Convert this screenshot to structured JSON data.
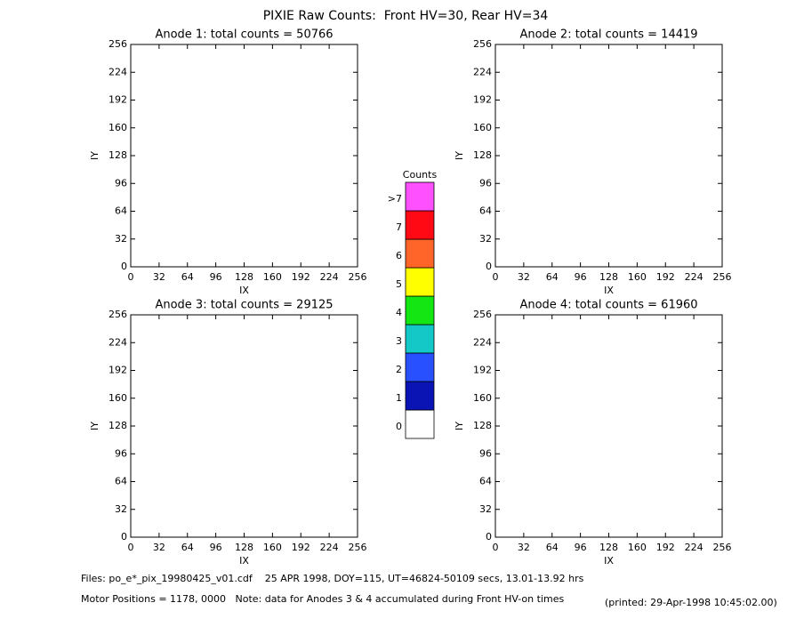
{
  "title": "PIXIE Raw Counts:  Front HV=30, Rear HV=34",
  "chart_data": [
    {
      "type": "heatmap",
      "title": "Anode 1: total counts = 50766",
      "xlabel": "IX",
      "ylabel": "IY",
      "xlim": [
        0,
        256
      ],
      "ylim": [
        0,
        256
      ],
      "xticks": [
        0,
        32,
        64,
        96,
        128,
        160,
        192,
        224,
        256
      ],
      "yticks": [
        0,
        32,
        64,
        96,
        128,
        160,
        192,
        224,
        256
      ]
    },
    {
      "type": "heatmap",
      "title": "Anode 2: total counts = 14419",
      "xlabel": "IX",
      "ylabel": "IY",
      "xlim": [
        0,
        256
      ],
      "ylim": [
        0,
        256
      ],
      "xticks": [
        0,
        32,
        64,
        96,
        128,
        160,
        192,
        224,
        256
      ],
      "yticks": [
        0,
        32,
        64,
        96,
        128,
        160,
        192,
        224,
        256
      ]
    },
    {
      "type": "heatmap",
      "title": "Anode 3: total counts = 29125",
      "xlabel": "IX",
      "ylabel": "IY",
      "xlim": [
        0,
        256
      ],
      "ylim": [
        0,
        256
      ],
      "xticks": [
        0,
        32,
        64,
        96,
        128,
        160,
        192,
        224,
        256
      ],
      "yticks": [
        0,
        32,
        64,
        96,
        128,
        160,
        192,
        224,
        256
      ]
    },
    {
      "type": "heatmap",
      "title": "Anode 4: total counts = 61960",
      "xlabel": "IX",
      "ylabel": "IY",
      "xlim": [
        0,
        256
      ],
      "ylim": [
        0,
        256
      ],
      "xticks": [
        0,
        32,
        64,
        96,
        128,
        160,
        192,
        224,
        256
      ],
      "yticks": [
        0,
        32,
        64,
        96,
        128,
        160,
        192,
        224,
        256
      ]
    }
  ],
  "colorbar": {
    "title": "Counts",
    "labels": [
      "0",
      "1",
      "2",
      "3",
      "4",
      "5",
      "6",
      "7",
      ">7"
    ],
    "colors": [
      "#ffffff",
      "#0a14b4",
      "#2850ff",
      "#14c8c8",
      "#14e614",
      "#ffff00",
      "#ff6428",
      "#ff0a14",
      "#ff50ff"
    ]
  },
  "footer": {
    "files": "Files: po_e*_pix_19980425_v01.cdf    25 APR 1998, DOY=115, UT=46824-50109 secs, 13.01-13.92 hrs",
    "motor": "Motor Positions = 1178, 0000   Note: data for Anodes 3 & 4 accumulated during Front HV-on times",
    "printed": "(printed: 29-Apr-1998 10:45:02.00)"
  }
}
